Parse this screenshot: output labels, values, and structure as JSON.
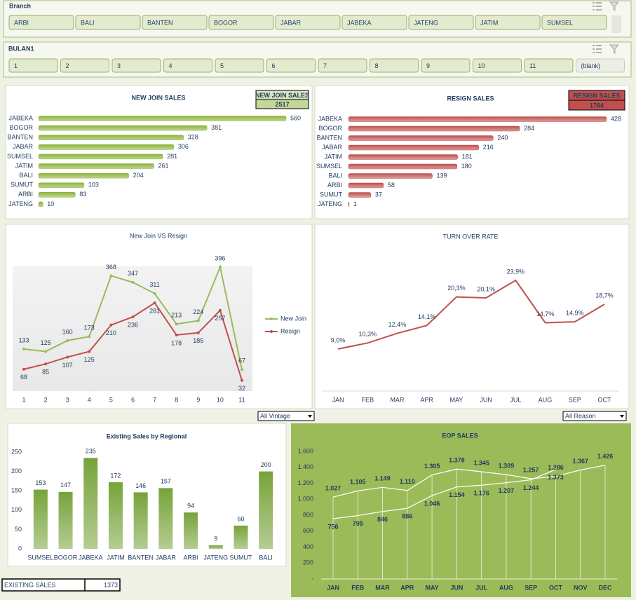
{
  "slicers": [
    {
      "title": "Branch",
      "items": [
        "ARBI",
        "BALI",
        "BANTEN",
        "BOGOR",
        "JABAR",
        "JABEKA",
        "JATENG",
        "JATIM",
        "SUMSEL"
      ]
    },
    {
      "title": "BULAN1",
      "items": [
        "1",
        "2",
        "3",
        "4",
        "5",
        "6",
        "7",
        "8",
        "9",
        "10",
        "11",
        "(blank)"
      ]
    }
  ],
  "chart_data": [
    {
      "type": "hbar",
      "title": "NEW JOIN SALES",
      "badge": {
        "label": "NEW JOIN SALES",
        "value": 2517
      },
      "categories": [
        "JABEKA",
        "BOGOR",
        "BANTEN",
        "JABAR",
        "SUMSEL",
        "JATIM",
        "BALI",
        "SUMUT",
        "ARBI",
        "JATENG"
      ],
      "values": [
        560,
        381,
        328,
        306,
        281,
        261,
        204,
        103,
        83,
        10
      ],
      "color": "#8db33a"
    },
    {
      "type": "hbar",
      "title": "RESIGN SALES",
      "badge": {
        "label": "RESIGN SALES",
        "value": 1764
      },
      "categories": [
        "JABEKA",
        "BOGOR",
        "BANTEN",
        "JABAR",
        "JATIM",
        "SUMSEL",
        "BALI",
        "ARBI",
        "SUMUT",
        "JATENG"
      ],
      "values": [
        428,
        284,
        240,
        216,
        181,
        180,
        139,
        58,
        37,
        1
      ],
      "color": "#c0504d"
    },
    {
      "type": "line",
      "title": "New Join VS Resign",
      "categories": [
        "1",
        "2",
        "3",
        "4",
        "5",
        "6",
        "7",
        "8",
        "9",
        "10",
        "11"
      ],
      "series": [
        {
          "name": "New Join",
          "color": "#9bbb59",
          "values": [
            133,
            125,
            160,
            173,
            368,
            347,
            311,
            213,
            224,
            396,
            67
          ]
        },
        {
          "name": "Resign",
          "color": "#c0504d",
          "values": [
            68,
            85,
            107,
            125,
            210,
            236,
            281,
            178,
            185,
            257,
            32
          ]
        }
      ],
      "legend": "right"
    },
    {
      "type": "line",
      "title": "TURN OVER RATE",
      "categories": [
        "JAN",
        "FEB",
        "MAR",
        "APR",
        "MAY",
        "JUN",
        "JUL",
        "AUG",
        "SEP",
        "OCT"
      ],
      "series": [
        {
          "color": "#c0504d",
          "values": [
            9.0,
            10.3,
            12.4,
            14.1,
            20.3,
            20.1,
            23.9,
            14.7,
            14.9,
            18.7
          ],
          "value_labels": [
            "9,0%",
            "10,3%",
            "12,4%",
            "14,1%",
            "20,3%",
            "20,1%",
            "23,9%",
            "14,7%",
            "14,9%",
            "18,7%"
          ]
        }
      ]
    },
    {
      "type": "bar",
      "title": "Existing Sales by Regional",
      "categories": [
        "SUMSEL",
        "BOGOR",
        "JABEKA",
        "JATIM",
        "BANTEN",
        "JABAR",
        "ARBI",
        "JATENG",
        "SUMUT",
        "BALI"
      ],
      "values": [
        153,
        147,
        235,
        172,
        146,
        157,
        94,
        9,
        60,
        200
      ],
      "color": "#77a33a",
      "ylim": [
        0,
        250
      ],
      "yticks": [
        0,
        50,
        100,
        150,
        200,
        250
      ]
    },
    {
      "type": "line",
      "title": "EOP SALES",
      "categories": [
        "JAN",
        "FEB",
        "MAR",
        "APR",
        "MAY",
        "JUN",
        "JUL",
        "AUG",
        "SEP",
        "OCT",
        "NOV",
        "DEC"
      ],
      "ylim": [
        0,
        1600
      ],
      "yticks": [
        {
          "value": 0,
          "label": "-"
        },
        200,
        400,
        600,
        800,
        {
          "value": 1000,
          "label": "1.000"
        },
        {
          "value": 1200,
          "label": "1.200"
        },
        {
          "value": 1400,
          "label": "1.400"
        },
        {
          "value": 1600,
          "label": "1.600"
        }
      ],
      "series": [
        {
          "color": "#ffffff",
          "values": [
            1027,
            1105,
            1149,
            1110,
            1305,
            1378,
            1345,
            1309,
            1257,
            1286,
            1367,
            1426
          ],
          "value_labels": [
            "1.027",
            "1.105",
            "1.149",
            "1.110",
            "1.305",
            "1.378",
            "1.345",
            "1.309",
            "1.257",
            "1.286",
            "1.367",
            "1.426"
          ]
        },
        {
          "color": "#ffffff",
          "values": [
            756,
            795,
            846,
            886,
            1046,
            1154,
            1176,
            1207,
            1244,
            1373,
            null,
            null
          ],
          "value_labels": [
            "756",
            "795",
            "846",
            "886",
            "1.046",
            "1.154",
            "1.176",
            "1.207",
            "1.244",
            "1.373",
            null,
            null
          ]
        }
      ]
    }
  ],
  "dropdowns": [
    "All Vintage",
    "All Reason"
  ],
  "existing_sales": {
    "label": "EXISTING SALES",
    "value": 1373
  }
}
